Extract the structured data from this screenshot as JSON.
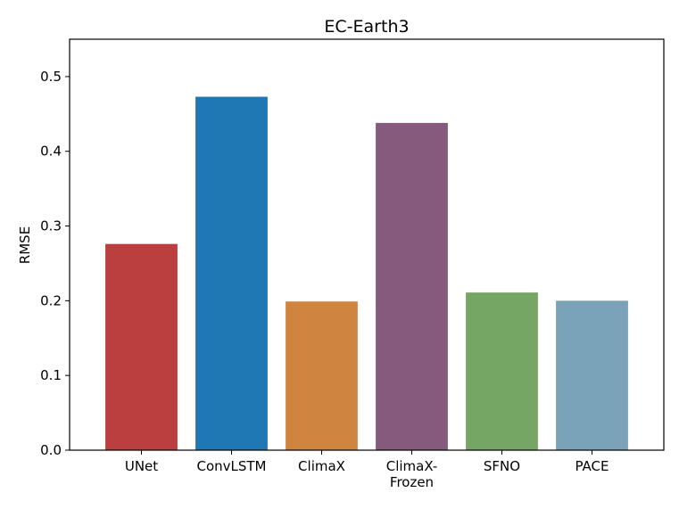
{
  "chart_data": {
    "type": "bar",
    "title": "EC-Earth3",
    "xlabel": "",
    "ylabel": "RMSE",
    "ylim": [
      0.0,
      0.55
    ],
    "yticks": [
      "0.0",
      "0.1",
      "0.2",
      "0.3",
      "0.4",
      "0.5"
    ],
    "grid": false,
    "categories": [
      [
        "UNet"
      ],
      [
        "ConvLSTM"
      ],
      [
        "ClimaX"
      ],
      [
        "ClimaX-",
        "Frozen"
      ],
      [
        "SFNO"
      ],
      [
        "PACE"
      ]
    ],
    "values": [
      0.276,
      0.473,
      0.199,
      0.438,
      0.211,
      0.2
    ],
    "colors": [
      "#bb3f3f",
      "#1f78b4",
      "#cf8540",
      "#855a7d",
      "#75a664",
      "#7aa3b9"
    ]
  }
}
